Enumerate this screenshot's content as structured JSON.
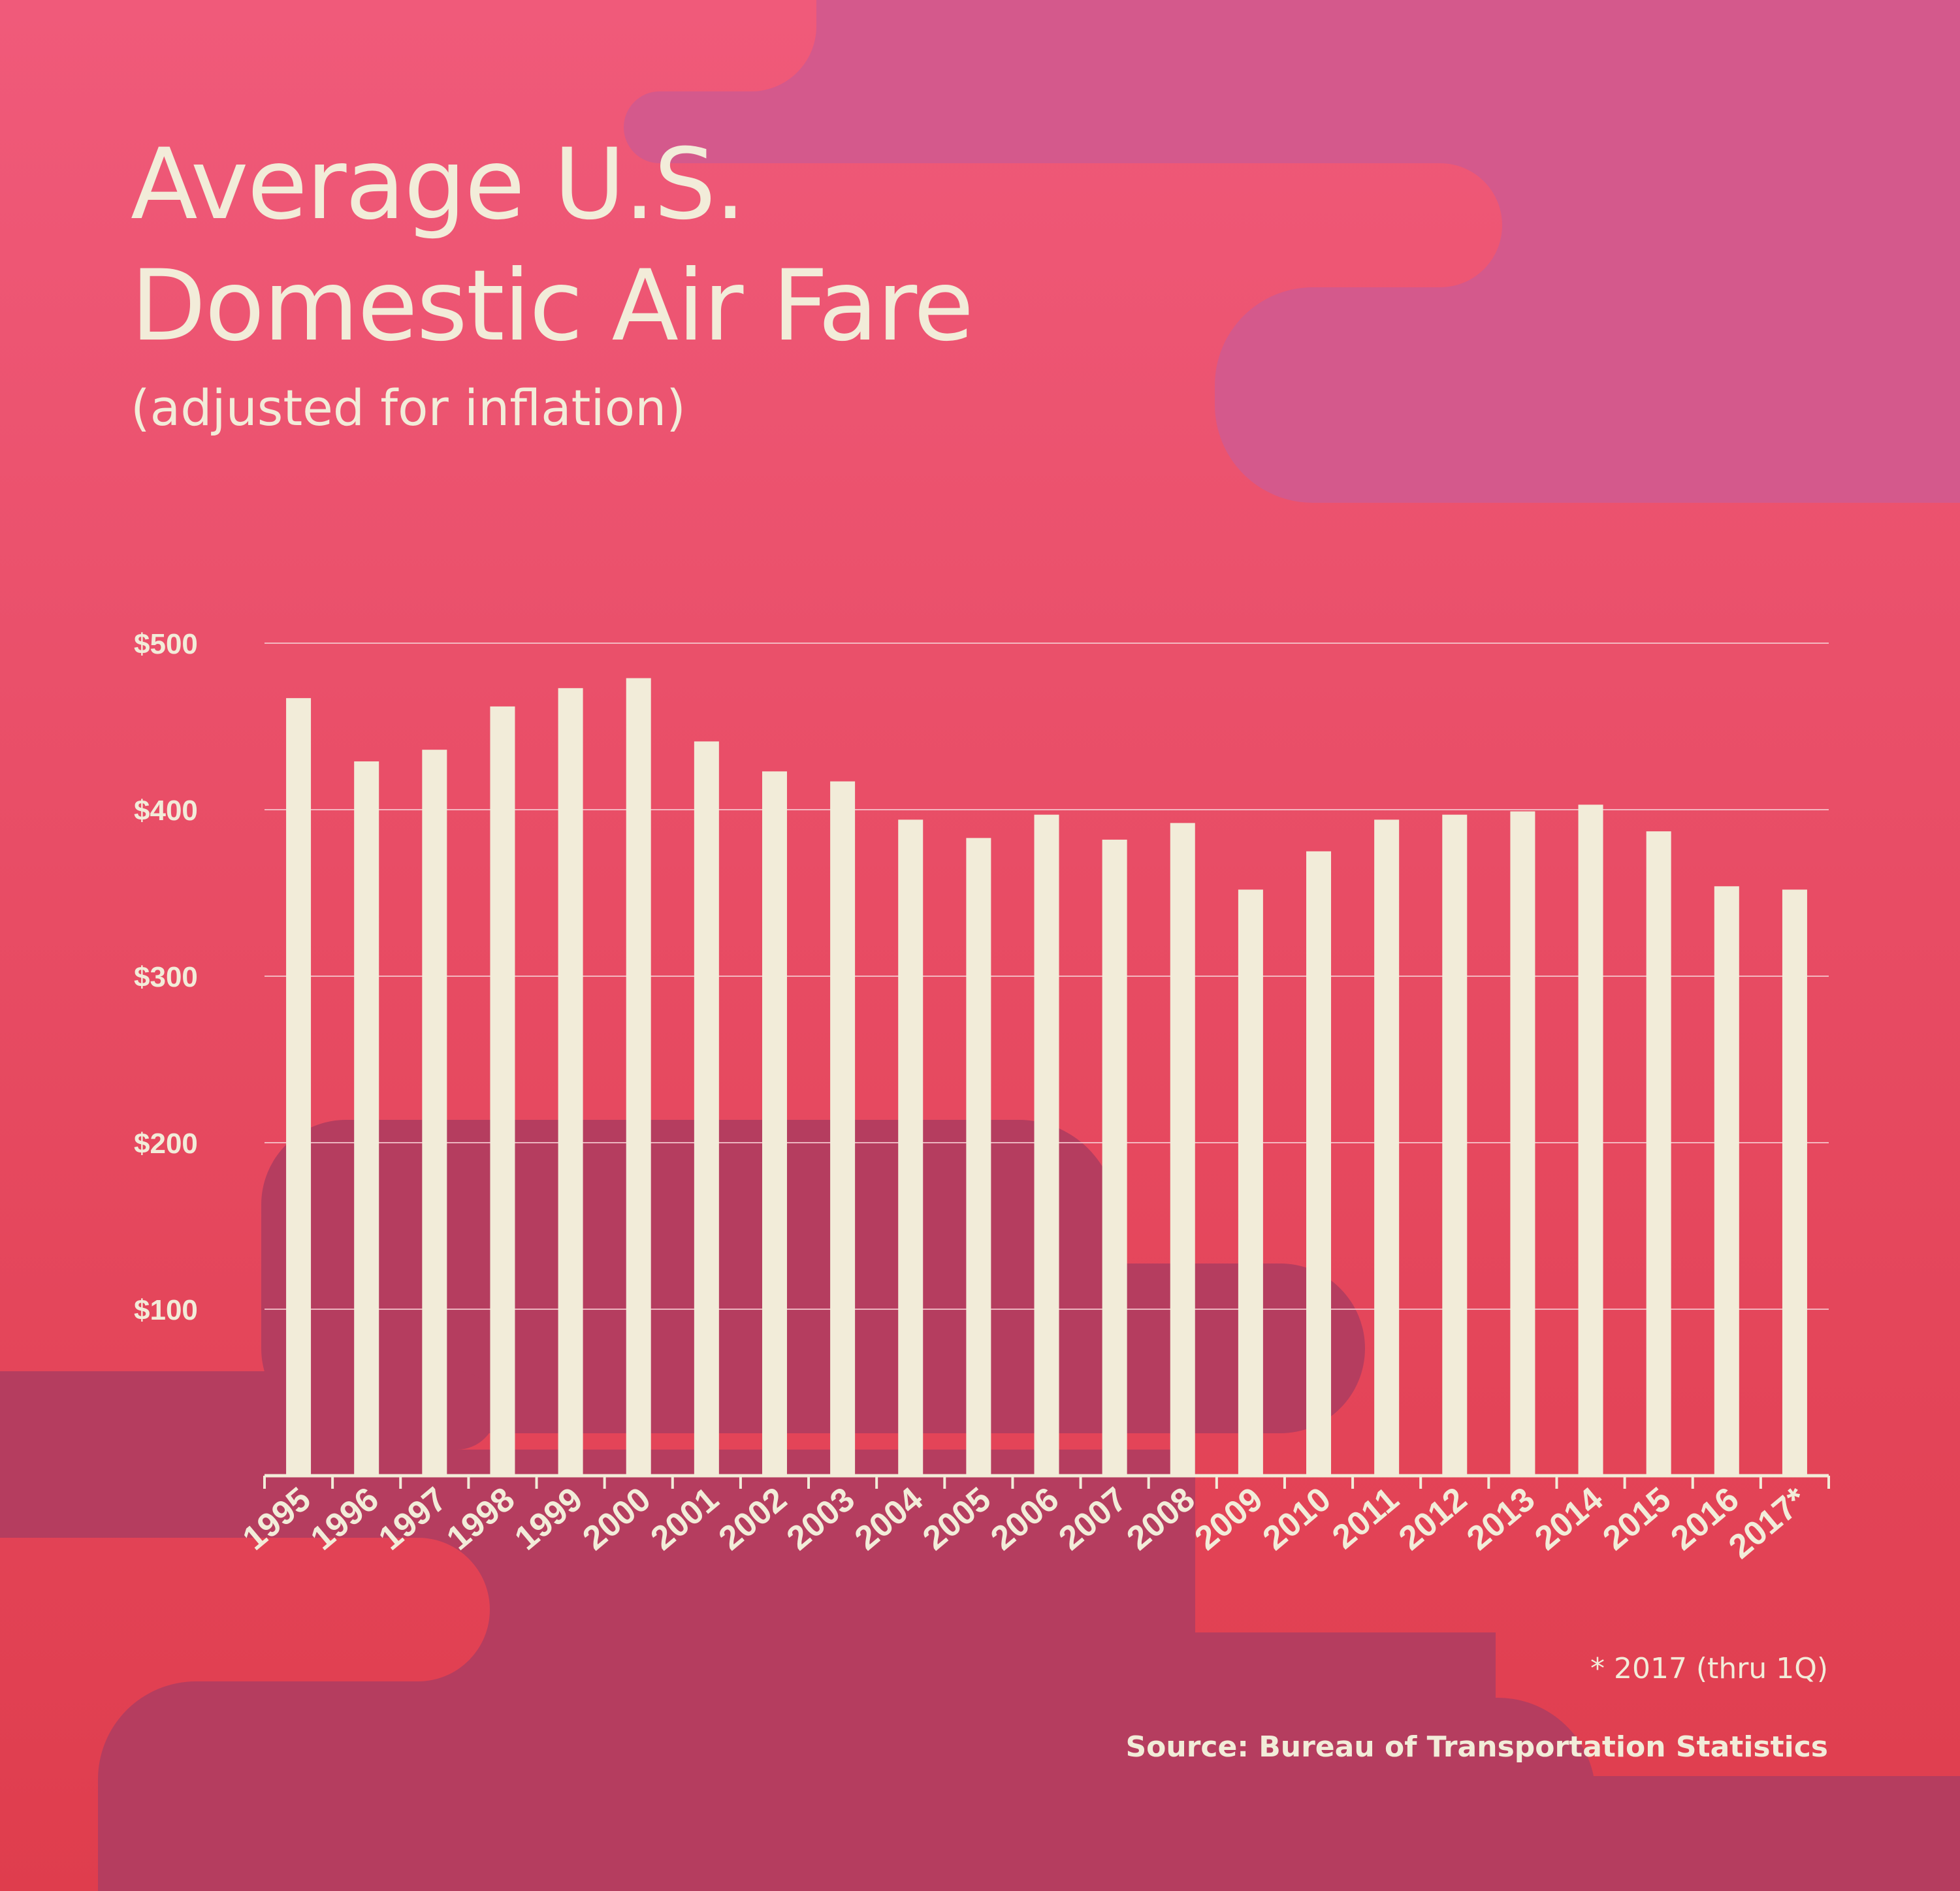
{
  "colors": {
    "background_top": "#f05a7a",
    "background_bottom": "#df3d4d",
    "blob_violet": "#d4598c",
    "blob_plum": "#b53d5f",
    "bar": "#f2ecd9",
    "text": "#f2ecd9",
    "grid": "#f6c9cf"
  },
  "title_line1": "Average U.S.",
  "title_line2": "Domestic Air Fare",
  "subtitle": "(adjusted for inflation)",
  "footnote": "* 2017 (thru 1Q)",
  "source": "Source: Bureau of Transportation Statistics",
  "chart_data": {
    "type": "bar",
    "title": "Average U.S. Domestic Air Fare",
    "subtitle": "(adjusted for inflation)",
    "categories": [
      "1995",
      "1996",
      "1997",
      "1998",
      "1999",
      "2000",
      "2001",
      "2002",
      "2003",
      "2004",
      "2005",
      "2006",
      "2007",
      "2008",
      "2009",
      "2010",
      "2011",
      "2012",
      "2013",
      "2014",
      "2015",
      "2016",
      "2017*"
    ],
    "values": [
      467,
      429,
      436,
      462,
      473,
      479,
      441,
      423,
      417,
      394,
      383,
      397,
      382,
      392,
      352,
      375,
      394,
      397,
      399,
      403,
      387,
      354,
      352
    ],
    "y_ticks": [
      100,
      200,
      300,
      400,
      500
    ],
    "y_tick_labels": [
      "$100",
      "$200",
      "$300",
      "$400",
      "$500"
    ],
    "ylim": [
      0,
      500
    ],
    "grid": true,
    "legend": "none"
  }
}
